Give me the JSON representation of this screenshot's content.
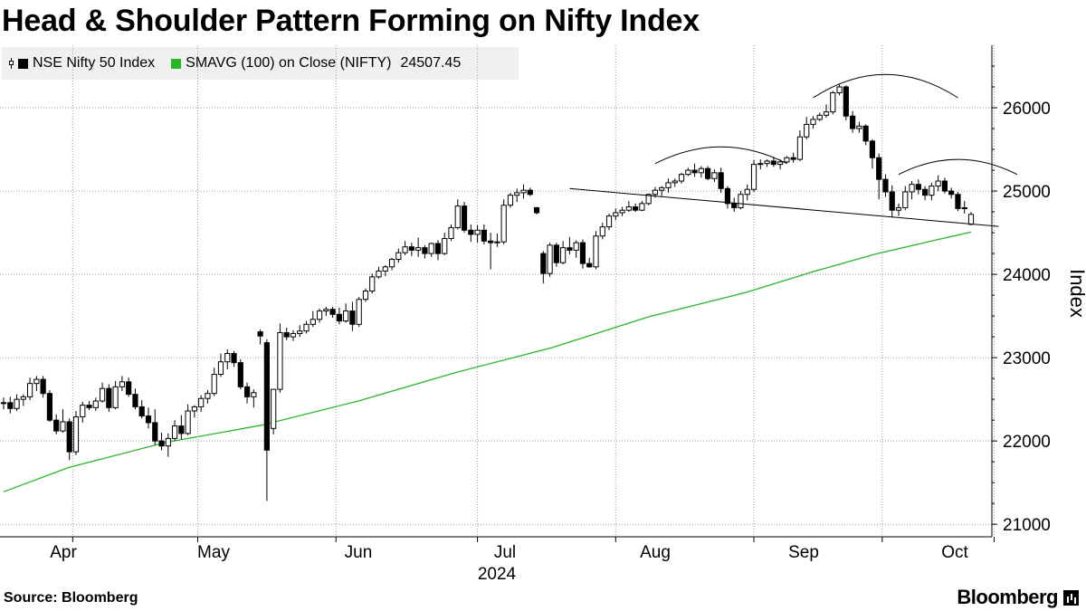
{
  "header": {
    "title": "Head & Shoulder Pattern Forming on Nifty Index"
  },
  "legend": {
    "series1": "NSE Nifty 50 Index",
    "series2": "SMAVG (100)  on Close (NIFTY)",
    "series2_value": "24507.45"
  },
  "footer": {
    "source": "Source: Bloomberg",
    "brand": "Bloomberg"
  },
  "chart_data": {
    "type": "candlestick",
    "ylabel": "Index",
    "ylim": [
      20850,
      26750
    ],
    "yticks": [
      21000,
      22000,
      23000,
      24000,
      25000,
      26000
    ],
    "months": [
      "Apr",
      "May",
      "Jun",
      "Jul",
      "Aug",
      "Sep",
      "Oct"
    ],
    "year_label": "2024",
    "grid": true,
    "colors": {
      "up": "#ffffff",
      "down": "#000000",
      "sma": "#2ab52a"
    },
    "candles": [
      [
        22450,
        22520,
        22380,
        22460
      ],
      [
        22460,
        22530,
        22330,
        22390
      ],
      [
        22390,
        22560,
        22360,
        22500
      ],
      [
        22500,
        22560,
        22420,
        22530
      ],
      [
        22530,
        22760,
        22490,
        22690
      ],
      [
        22690,
        22780,
        22600,
        22740
      ],
      [
        22740,
        22780,
        22520,
        22570
      ],
      [
        22570,
        22610,
        22230,
        22250
      ],
      [
        22250,
        22320,
        22080,
        22120
      ],
      [
        22120,
        22380,
        22100,
        22230
      ],
      [
        22230,
        22270,
        21770,
        21870
      ],
      [
        21870,
        22360,
        21830,
        22290
      ],
      [
        22290,
        22470,
        22220,
        22430
      ],
      [
        22430,
        22480,
        22370,
        22400
      ],
      [
        22400,
        22520,
        22360,
        22480
      ],
      [
        22480,
        22700,
        22460,
        22630
      ],
      [
        22630,
        22680,
        22350,
        22400
      ],
      [
        22400,
        22720,
        22380,
        22650
      ],
      [
        22650,
        22780,
        22600,
        22710
      ],
      [
        22710,
        22760,
        22530,
        22560
      ],
      [
        22560,
        22630,
        22380,
        22410
      ],
      [
        22410,
        22490,
        22270,
        22300
      ],
      [
        22300,
        22400,
        22150,
        22220
      ],
      [
        22220,
        22380,
        21950,
        22000
      ],
      [
        22000,
        22100,
        21890,
        21940
      ],
      [
        21940,
        22090,
        21810,
        22030
      ],
      [
        22030,
        22250,
        22000,
        22180
      ],
      [
        22180,
        22310,
        22020,
        22090
      ],
      [
        22090,
        22440,
        22070,
        22360
      ],
      [
        22360,
        22430,
        22280,
        22410
      ],
      [
        22410,
        22550,
        22350,
        22510
      ],
      [
        22510,
        22610,
        22450,
        22570
      ],
      [
        22570,
        22880,
        22540,
        22800
      ],
      [
        22800,
        23050,
        22770,
        22950
      ],
      [
        22950,
        23100,
        22860,
        23050
      ],
      [
        23050,
        23080,
        22890,
        22940
      ],
      [
        22940,
        22980,
        22620,
        22650
      ],
      [
        22650,
        22700,
        22450,
        22530
      ],
      [
        22530,
        22620,
        22400,
        22580
      ],
      [
        23310,
        23340,
        23160,
        23260
      ],
      [
        23180,
        23220,
        21280,
        21890
      ],
      [
        22150,
        22610,
        22080,
        22620
      ],
      [
        22620,
        23410,
        22580,
        23300
      ],
      [
        23300,
        23360,
        23210,
        23250
      ],
      [
        23250,
        23330,
        23200,
        23290
      ],
      [
        23290,
        23390,
        23250,
        23320
      ],
      [
        23320,
        23440,
        23290,
        23400
      ],
      [
        23400,
        23560,
        23370,
        23460
      ],
      [
        23460,
        23590,
        23420,
        23560
      ],
      [
        23560,
        23610,
        23500,
        23580
      ],
      [
        23580,
        23610,
        23480,
        23520
      ],
      [
        23520,
        23600,
        23400,
        23440
      ],
      [
        23440,
        23650,
        23420,
        23560
      ],
      [
        23560,
        23670,
        23320,
        23400
      ],
      [
        23400,
        23730,
        23370,
        23700
      ],
      [
        23700,
        23830,
        23670,
        23800
      ],
      [
        23800,
        24010,
        23770,
        23970
      ],
      [
        23970,
        24090,
        23950,
        24040
      ],
      [
        24040,
        24110,
        23980,
        24090
      ],
      [
        24090,
        24200,
        24050,
        24180
      ],
      [
        24180,
        24310,
        24140,
        24260
      ],
      [
        24260,
        24400,
        24230,
        24330
      ],
      [
        24330,
        24380,
        24220,
        24290
      ],
      [
        24290,
        24440,
        24210,
        24320
      ],
      [
        24320,
        24350,
        24190,
        24250
      ],
      [
        24250,
        24380,
        24210,
        24370
      ],
      [
        24370,
        24410,
        24170,
        24250
      ],
      [
        24250,
        24500,
        24230,
        24430
      ],
      [
        24430,
        24600,
        24400,
        24560
      ],
      [
        24560,
        24900,
        24540,
        24820
      ],
      [
        24820,
        24870,
        24500,
        24530
      ],
      [
        24530,
        24600,
        24390,
        24480
      ],
      [
        24480,
        24590,
        24380,
        24530
      ],
      [
        24530,
        24600,
        24360,
        24400
      ],
      [
        24400,
        24500,
        24060,
        24380
      ],
      [
        24380,
        24490,
        24330,
        24390
      ],
      [
        24390,
        24900,
        24360,
        24830
      ],
      [
        24830,
        24980,
        24800,
        24950
      ],
      [
        24950,
        25030,
        24870,
        24980
      ],
      [
        24980,
        25080,
        24910,
        25010
      ],
      [
        25010,
        25040,
        24940,
        24960
      ],
      [
        24800,
        24810,
        24720,
        24740
      ],
      [
        24250,
        24280,
        23890,
        24010
      ],
      [
        24010,
        24380,
        23970,
        24350
      ],
      [
        24350,
        24380,
        24090,
        24140
      ],
      [
        24140,
        24400,
        24120,
        24320
      ],
      [
        24320,
        24450,
        24240,
        24290
      ],
      [
        24290,
        24410,
        24200,
        24380
      ],
      [
        24380,
        24420,
        24070,
        24130
      ],
      [
        24130,
        24200,
        24080,
        24090
      ],
      [
        24090,
        24520,
        24060,
        24460
      ],
      [
        24460,
        24620,
        24420,
        24570
      ],
      [
        24570,
        24730,
        24530,
        24700
      ],
      [
        24700,
        24790,
        24650,
        24740
      ],
      [
        24740,
        24810,
        24700,
        24770
      ],
      [
        24770,
        24880,
        24750,
        24810
      ],
      [
        24810,
        24850,
        24750,
        24770
      ],
      [
        24770,
        24880,
        24760,
        24850
      ],
      [
        24850,
        24970,
        24830,
        24960
      ],
      [
        24960,
        25050,
        24920,
        25010
      ],
      [
        25010,
        25060,
        24940,
        25040
      ],
      [
        25040,
        25150,
        24980,
        25100
      ],
      [
        25100,
        25150,
        25050,
        25120
      ],
      [
        25120,
        25220,
        25090,
        25200
      ],
      [
        25200,
        25280,
        25180,
        25250
      ],
      [
        25250,
        25330,
        25170,
        25220
      ],
      [
        25220,
        25300,
        25160,
        25270
      ],
      [
        25270,
        25300,
        25130,
        25150
      ],
      [
        25150,
        25260,
        25110,
        25220
      ],
      [
        25220,
        25280,
        24980,
        25030
      ],
      [
        25030,
        25060,
        24790,
        24850
      ],
      [
        24850,
        24920,
        24750,
        24800
      ],
      [
        24800,
        25000,
        24780,
        24960
      ],
      [
        24960,
        25080,
        24890,
        25020
      ],
      [
        25020,
        25370,
        24990,
        25320
      ],
      [
        25320,
        25380,
        25260,
        25330
      ],
      [
        25330,
        25380,
        25290,
        25360
      ],
      [
        25360,
        25410,
        25290,
        25320
      ],
      [
        25320,
        25380,
        25260,
        25350
      ],
      [
        25350,
        25420,
        25330,
        25400
      ],
      [
        25400,
        25460,
        25340,
        25380
      ],
      [
        25380,
        25730,
        25360,
        25650
      ],
      [
        25650,
        25890,
        25620,
        25800
      ],
      [
        25800,
        25900,
        25750,
        25860
      ],
      [
        25860,
        25940,
        25840,
        25910
      ],
      [
        25910,
        26040,
        25880,
        25950
      ],
      [
        25950,
        26200,
        25920,
        26180
      ],
      [
        26180,
        26280,
        26150,
        26250
      ],
      [
        26250,
        26270,
        25850,
        25900
      ],
      [
        25900,
        25960,
        25700,
        25750
      ],
      [
        25750,
        25830,
        25700,
        25780
      ],
      [
        25780,
        25800,
        25550,
        25600
      ],
      [
        25600,
        25620,
        25270,
        25400
      ],
      [
        25400,
        25450,
        24900,
        25140
      ],
      [
        25140,
        25200,
        24930,
        24990
      ],
      [
        24990,
        25070,
        24680,
        24770
      ],
      [
        24770,
        24850,
        24700,
        24800
      ],
      [
        24800,
        25060,
        24770,
        24990
      ],
      [
        24990,
        25120,
        24900,
        25080
      ],
      [
        25080,
        25140,
        24960,
        25020
      ],
      [
        25020,
        25060,
        24890,
        24950
      ],
      [
        24950,
        25100,
        24890,
        25060
      ],
      [
        25060,
        25190,
        25000,
        25120
      ],
      [
        25120,
        25160,
        24970,
        25000
      ],
      [
        25000,
        25040,
        24910,
        24960
      ],
      [
        24960,
        24990,
        24760,
        24790
      ],
      [
        24790,
        24880,
        24730,
        24800
      ],
      [
        24600,
        24750,
        24590,
        24720
      ]
    ],
    "sma": {
      "points": [
        [
          0,
          21390
        ],
        [
          10,
          21680
        ],
        [
          25,
          21980
        ],
        [
          40,
          22190
        ],
        [
          55,
          22480
        ],
        [
          70,
          22820
        ],
        [
          85,
          23120
        ],
        [
          100,
          23490
        ],
        [
          115,
          23780
        ],
        [
          125,
          24020
        ],
        [
          135,
          24240
        ],
        [
          145,
          24420
        ],
        [
          150,
          24507
        ]
      ]
    },
    "pattern": {
      "neckline": [
        [
          86,
          25030
        ],
        [
          150,
          24590
        ]
      ],
      "arcs": [
        {
          "center_index": 109,
          "half_width": 10,
          "base": 25330,
          "peak": 25530
        },
        {
          "center_index": 134,
          "half_width": 11,
          "base": 26120,
          "peak": 26400
        },
        {
          "center_index": 145,
          "half_width": 9,
          "base": 25200,
          "peak": 25380
        }
      ]
    }
  }
}
